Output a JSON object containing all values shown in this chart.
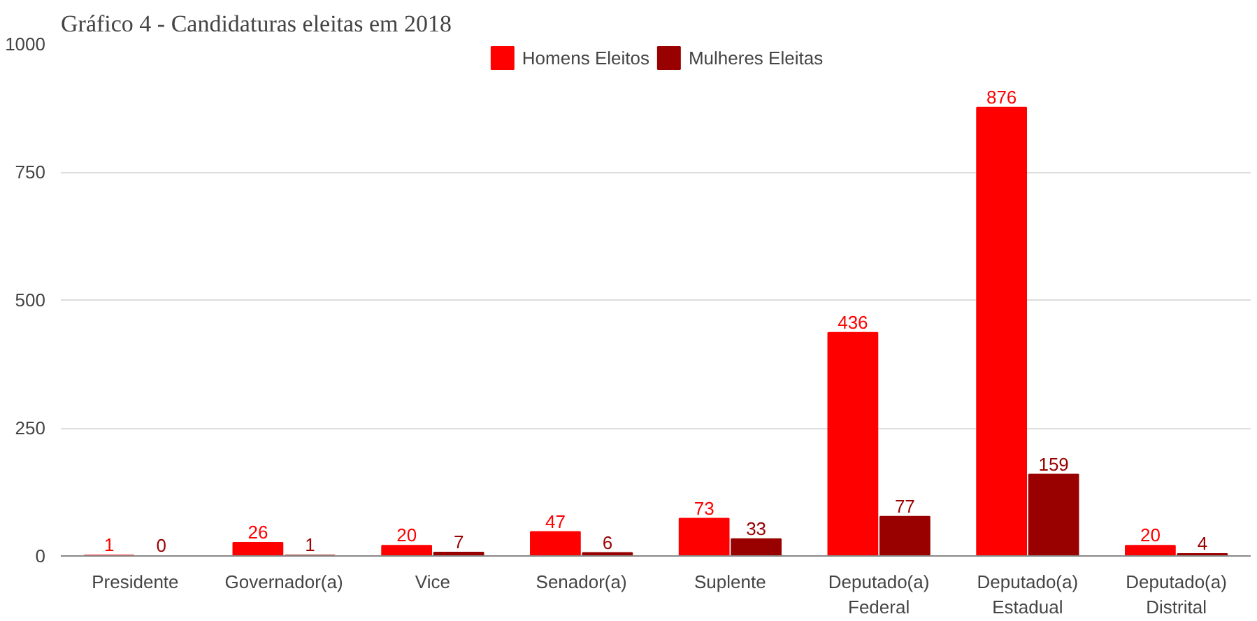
{
  "chart_data": {
    "type": "bar",
    "title": "Gráfico 4 - Candidaturas eleitas em 2018",
    "categories": [
      "Presidente",
      "Governador(a)",
      "Vice",
      "Senador(a)",
      "Suplente",
      "Deputado(a) Federal",
      "Deputado(a) Estadual",
      "Deputado(a) Distrital"
    ],
    "series": [
      {
        "name": "Homens Eleitos",
        "color": "#ff0000",
        "values": [
          1,
          26,
          20,
          47,
          73,
          436,
          876,
          20
        ]
      },
      {
        "name": "Mulheres Eleitas",
        "color": "#990000",
        "values": [
          0,
          1,
          7,
          6,
          33,
          77,
          159,
          4
        ]
      }
    ],
    "ylim": [
      0,
      1000
    ],
    "yticks": [
      0,
      250,
      500,
      750,
      1000
    ],
    "grid": "y",
    "legend": "top",
    "data_labels": true
  }
}
